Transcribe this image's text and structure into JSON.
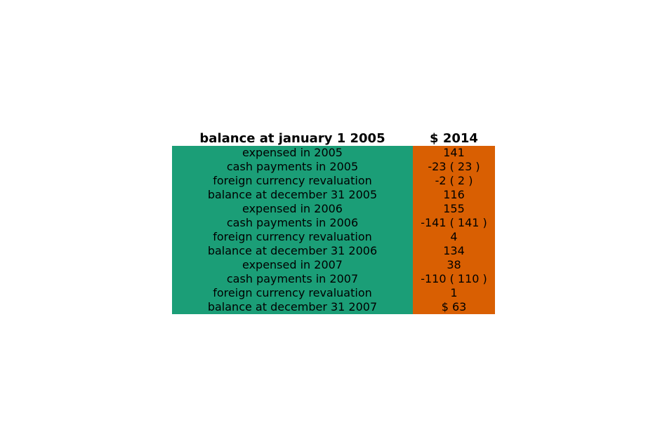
{
  "chart_data": {
    "type": "table",
    "columns": [
      "balance at january 1 2005",
      "$ 2014"
    ],
    "colors": {
      "label_column": "#1b9e77",
      "value_column": "#d95f02"
    },
    "rows": [
      {
        "label": "expensed in 2005",
        "value": "141"
      },
      {
        "label": "cash payments in 2005",
        "value": "-23 ( 23 )"
      },
      {
        "label": "foreign currency revaluation",
        "value": "-2 ( 2 )"
      },
      {
        "label": "balance at december 31 2005",
        "value": "116"
      },
      {
        "label": "expensed in 2006",
        "value": "155"
      },
      {
        "label": "cash payments in 2006",
        "value": "-141 ( 141 )"
      },
      {
        "label": "foreign currency revaluation",
        "value": "4"
      },
      {
        "label": "balance at december 31 2006",
        "value": "134"
      },
      {
        "label": "expensed in 2007",
        "value": "38"
      },
      {
        "label": "cash payments in 2007",
        "value": "-110 ( 110 )"
      },
      {
        "label": "foreign currency revaluation",
        "value": "1"
      },
      {
        "label": "balance at december 31 2007",
        "value": "$ 63"
      }
    ]
  }
}
